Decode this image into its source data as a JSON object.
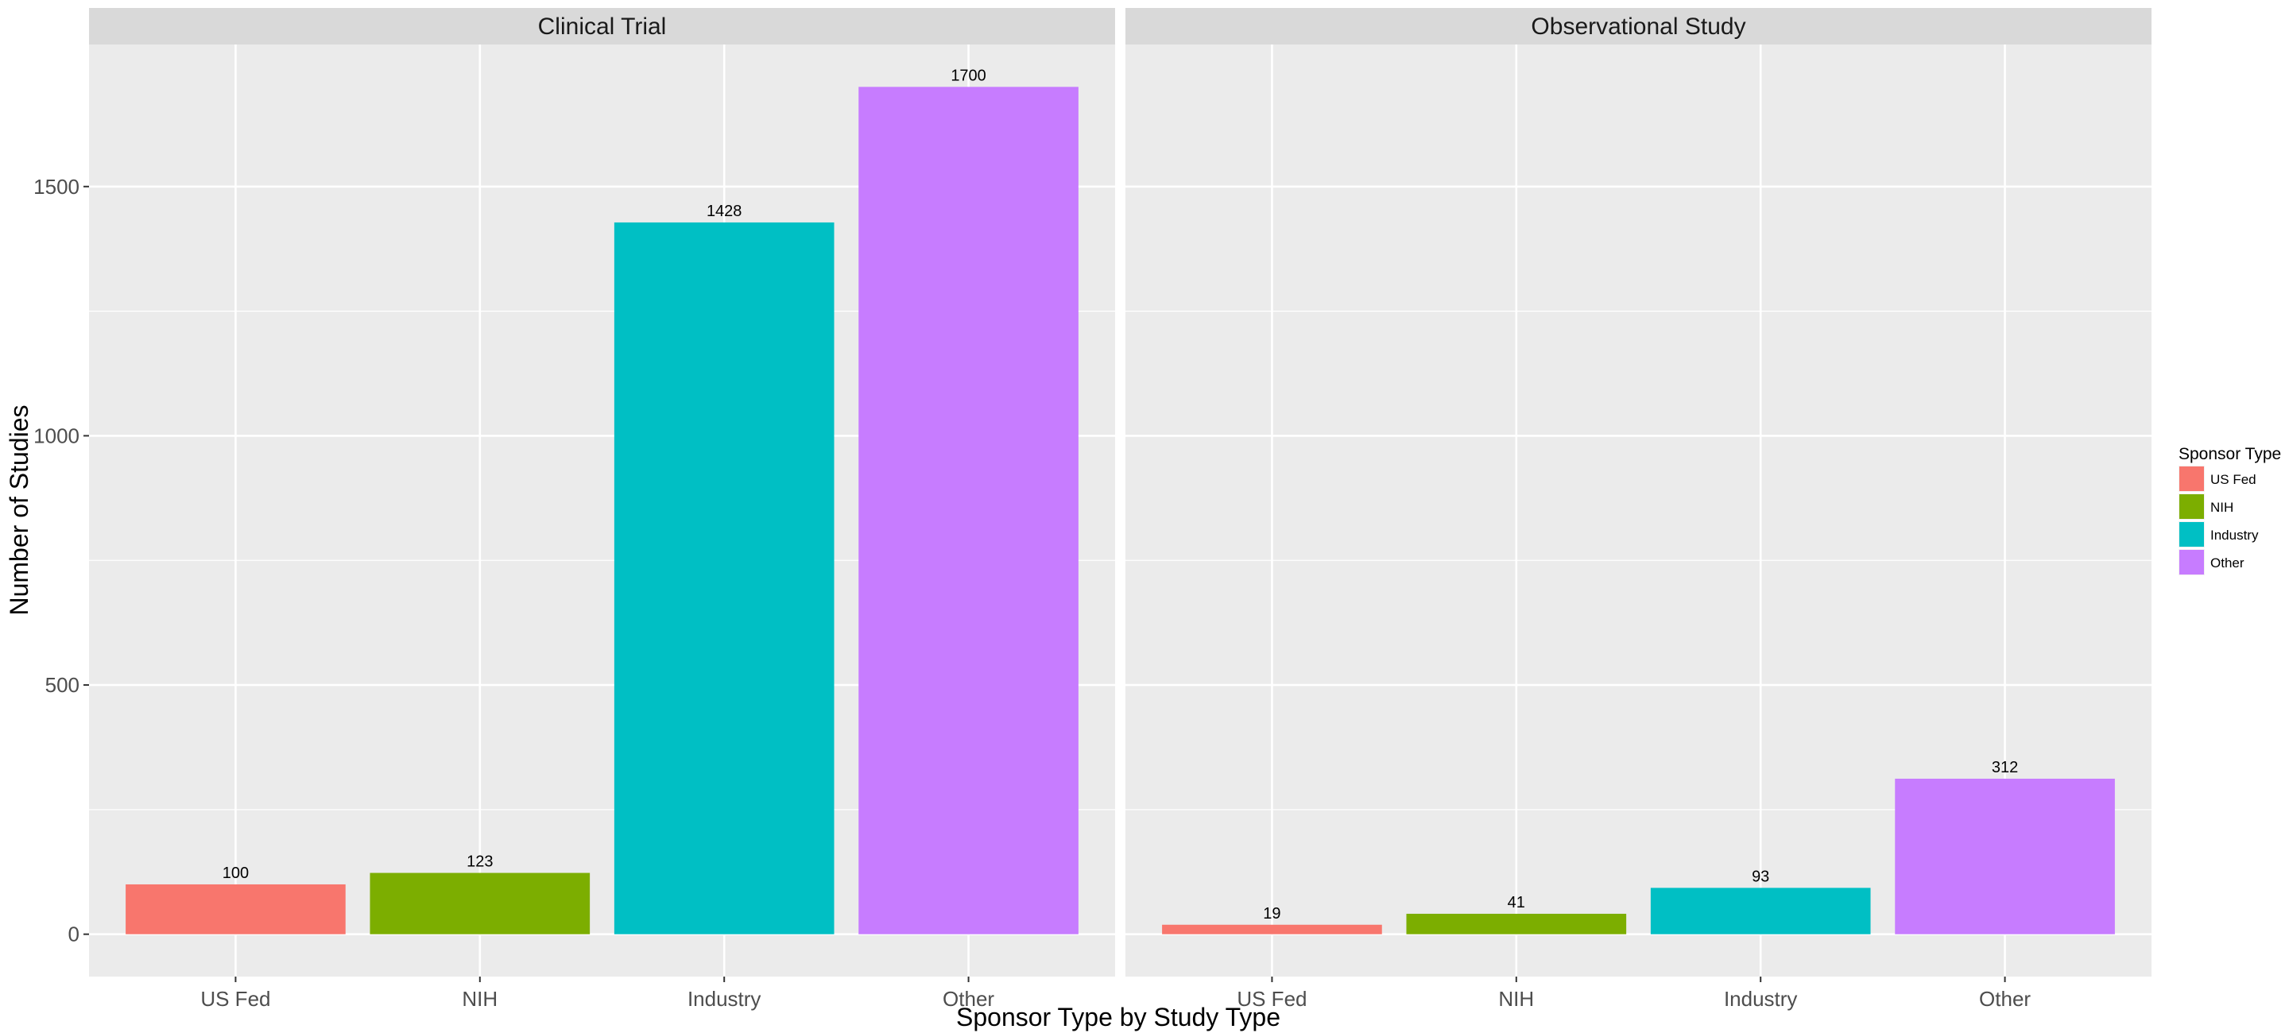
{
  "chart_data": {
    "type": "bar",
    "facet_variable": "Study Type",
    "facets": [
      "Clinical Trial",
      "Observational Study"
    ],
    "categories": [
      "US Fed",
      "NIH",
      "Industry",
      "Other"
    ],
    "series": [
      {
        "facet": "Clinical Trial",
        "values": [
          100,
          123,
          1428,
          1700
        ]
      },
      {
        "facet": "Observational Study",
        "values": [
          19,
          41,
          93,
          312
        ]
      }
    ],
    "data_labels": true,
    "xlabel": "Sponsor Type by Study Type",
    "ylabel": "Number of Studies",
    "ylim": [
      -85,
      1785
    ],
    "yticks": [
      0,
      500,
      1000,
      1500
    ],
    "grid": true,
    "legend": {
      "title": "Sponsor Type",
      "position": "right",
      "entries": [
        "US Fed",
        "NIH",
        "Industry",
        "Other"
      ]
    },
    "colors": {
      "US Fed": "#F8766D",
      "NIH": "#7CAE00",
      "Industry": "#00BFC4",
      "Other": "#C77CFF",
      "panel_background": "#EBEBEB",
      "strip_background": "#D9D9D9",
      "grid": "#FFFFFF"
    }
  }
}
